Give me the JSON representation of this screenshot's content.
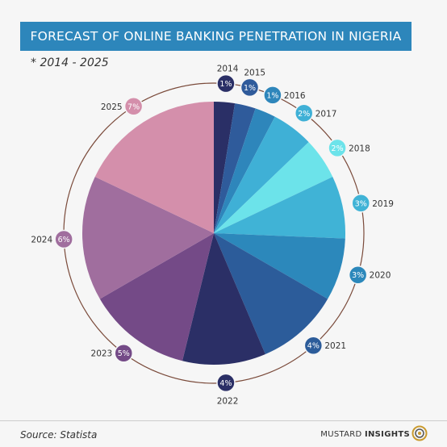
{
  "header": {
    "title": "FORECAST OF ONLINE BANKING PENETRATION IN NIGERIA",
    "subtitle": "* 2014 - 2025"
  },
  "footer": {
    "source": "Source: Statista",
    "brand_light": "MUSTARD",
    "brand_bold": "INSIGHTS"
  },
  "chart_data": {
    "type": "pie",
    "categories": [
      "2014",
      "2015",
      "2016",
      "2017",
      "2018",
      "2019",
      "2020",
      "2021",
      "2022",
      "2023",
      "2024",
      "2025"
    ],
    "values": [
      1,
      1,
      1,
      2,
      2,
      3,
      3,
      4,
      4,
      5,
      6,
      7
    ],
    "labels": [
      "1%",
      "1%",
      "1%",
      "2%",
      "2%",
      "3%",
      "3%",
      "4%",
      "4%",
      "5%",
      "6%",
      "7%"
    ],
    "colors": [
      "#2a2f66",
      "#2f5b9b",
      "#2e86bb",
      "#3fb0d6",
      "#6ce3ea",
      "#40b3d6",
      "#2c88bb",
      "#2c5c9a",
      "#2b2f66",
      "#744a87",
      "#a06e9e",
      "#d48fab"
    ],
    "start_at": "top",
    "direction": "clockwise"
  }
}
